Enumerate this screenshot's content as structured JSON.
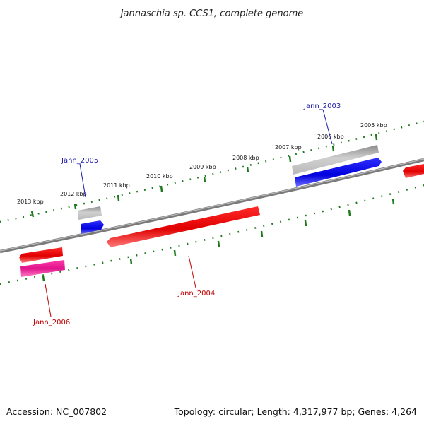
{
  "title": "Jannaschia sp. CCS1, complete genome",
  "footer": {
    "accession": "Accession: NC_007802",
    "summary": "Topology: circular; Length: 4,317,977 bp; Genes: 4,264"
  },
  "scale_labels": [
    "2013 kbp",
    "2012 kbp",
    "2011 kbp",
    "2010 kbp",
    "2009 kbp",
    "2008 kbp",
    "2007 kbp",
    "2006 kbp",
    "2005 kbp"
  ],
  "genes": {
    "jann_2003": "Jann_2003",
    "jann_2004": "Jann_2004",
    "jann_2005": "Jann_2005",
    "jann_2006": "Jann_2006"
  },
  "colors": {
    "backbone": "#808080",
    "tick": "#1f7a1f",
    "forward_feature": "#ee0000",
    "reverse_feature": "#0000ee",
    "gene_gray": "#a9a9a9",
    "gene_magenta": "#e0148c",
    "label_blue": "#1a1aa6",
    "label_red": "#c00000"
  }
}
